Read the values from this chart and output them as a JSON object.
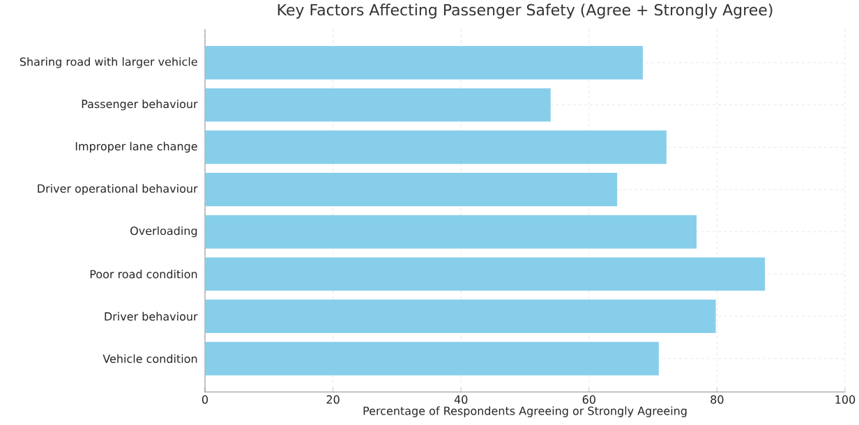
{
  "chart_data": {
    "type": "bar",
    "orientation": "horizontal",
    "title": "Key Factors Affecting Passenger Safety (Agree + Strongly Agree)",
    "xlabel": "Percentage of Respondents Agreeing or Strongly Agreeing",
    "categories": [
      "Sharing road with larger vehicle",
      "Passenger behaviour",
      "Improper lane change",
      "Driver operational behaviour",
      "Overloading",
      "Poor road condition",
      "Driver behaviour",
      "Vehicle condition"
    ],
    "values": [
      68.4,
      54,
      72.1,
      64.4,
      76.8,
      87.5,
      79.8,
      70.9
    ],
    "color": "#87ceeb",
    "xlim": [
      0,
      100
    ],
    "xticks": [
      0,
      20,
      40,
      60,
      80,
      100
    ],
    "grid": true
  }
}
